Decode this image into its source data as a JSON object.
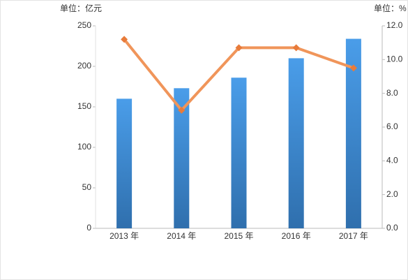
{
  "chart_data": {
    "type": "bar-line",
    "y_unit_label": "单位：亿元",
    "y2_unit_label": "单位：%",
    "categories": [
      "2013 年",
      "2014 年",
      "2015 年",
      "2016 年",
      "2017 年"
    ],
    "series": [
      {
        "type": "bar",
        "color": "#3f8ad8",
        "values": [
          160,
          173,
          186,
          210,
          234
        ]
      },
      {
        "type": "line",
        "axis": "y2",
        "color": "#f0955a",
        "marker_color": "#e87b3a",
        "values": [
          11.2,
          7.0,
          10.7,
          10.7,
          9.5
        ]
      }
    ],
    "ylim": [
      0,
      250
    ],
    "yticks": [
      0,
      50,
      100,
      150,
      200,
      250
    ],
    "y2lim": [
      0,
      12
    ],
    "y2ticks": [
      {
        "value": 0,
        "label": "0.0"
      },
      {
        "value": 2,
        "label": "2.0"
      },
      {
        "value": 4,
        "label": "4.0"
      },
      {
        "value": 6,
        "label": "6.0"
      },
      {
        "value": 8,
        "label": "8.0"
      },
      {
        "value": 10,
        "label": "10.0"
      },
      {
        "value": 12,
        "label": "12.0"
      }
    ]
  }
}
